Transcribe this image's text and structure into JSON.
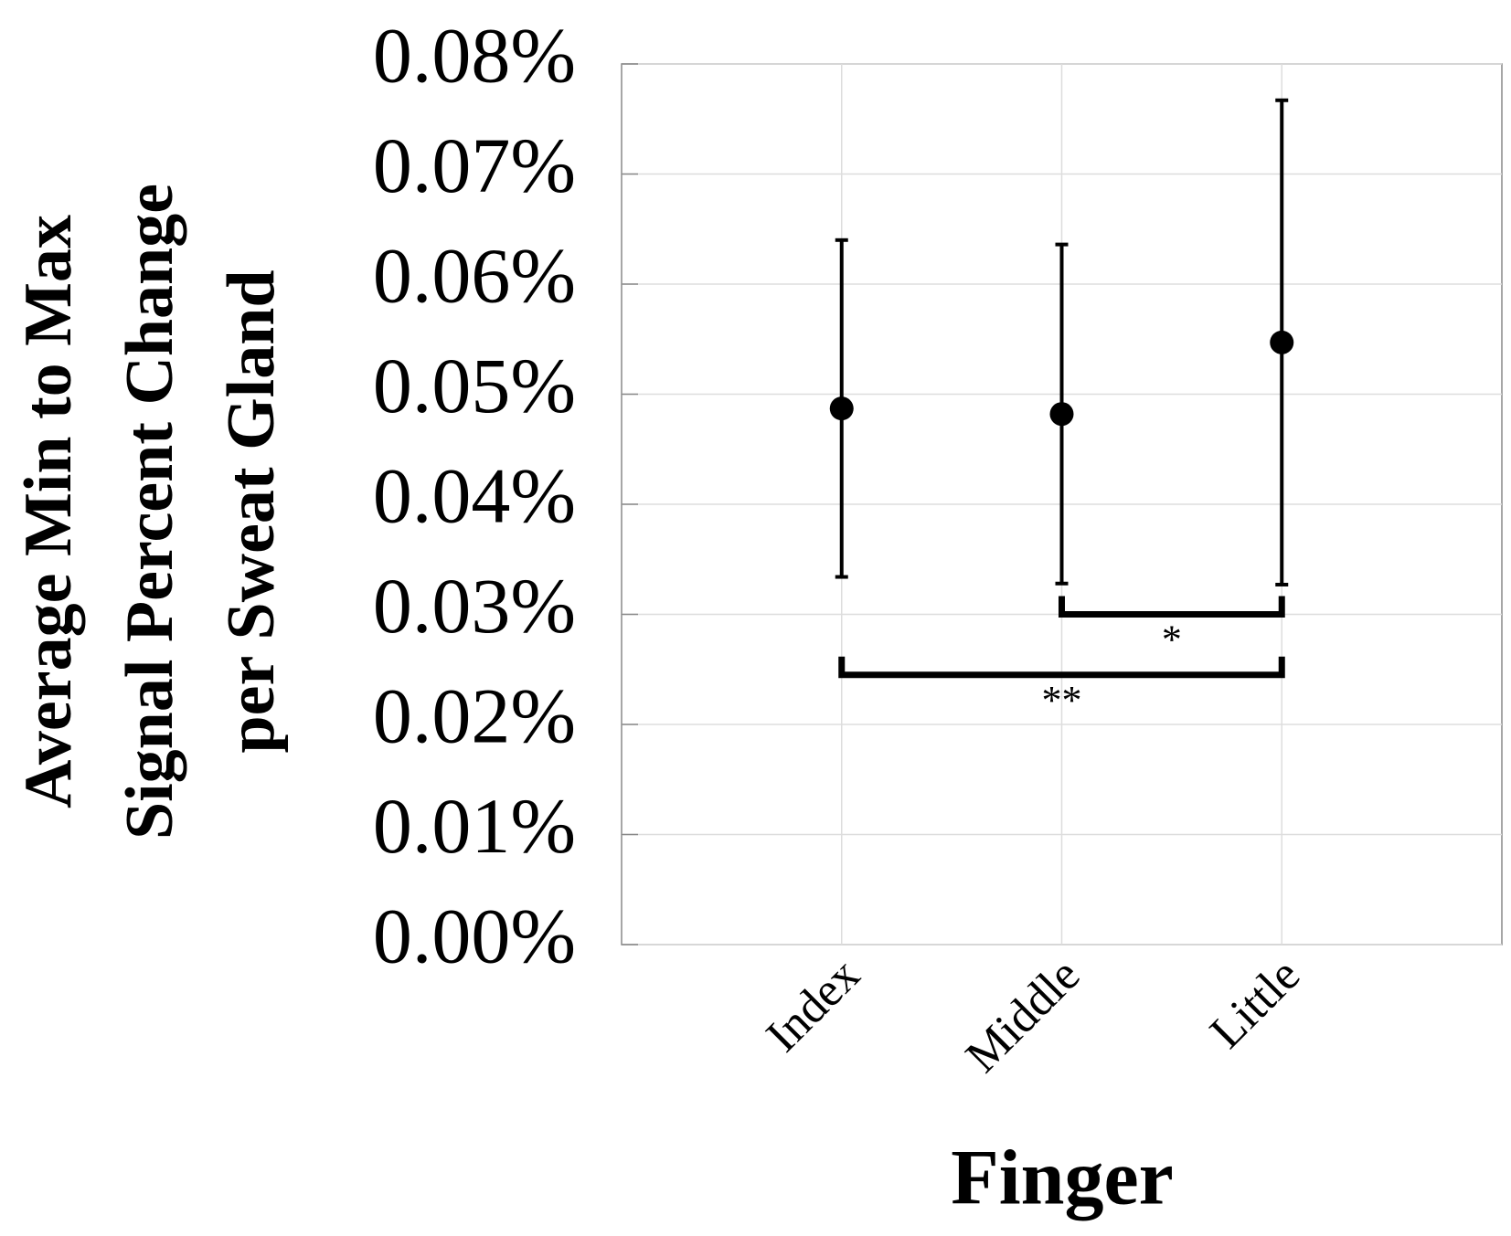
{
  "chart_data": {
    "type": "errorbar",
    "ylabel": [
      "Average Min to Max",
      "Signal Percent Change",
      "per Sweat Gland"
    ],
    "xlabel": "Finger",
    "categories": [
      "Index",
      "Middle",
      "Little"
    ],
    "values": [
      0.0487,
      0.0482,
      0.0547
    ],
    "errors": [
      0.0153,
      0.0154,
      0.022
    ],
    "color": "#000000",
    "ylim": [
      0,
      0.08
    ],
    "yticks": [
      {
        "value": 0,
        "label": "0.00%"
      },
      {
        "value": 0.01,
        "label": "0.01%"
      },
      {
        "value": 0.02,
        "label": "0.02%"
      },
      {
        "value": 0.03,
        "label": "0.03%"
      },
      {
        "value": 0.04,
        "label": "0.04%"
      },
      {
        "value": 0.05,
        "label": "0.05%"
      },
      {
        "value": 0.06,
        "label": "0.06%"
      },
      {
        "value": 0.07,
        "label": "0.07%"
      },
      {
        "value": 0.08,
        "label": "0.08%"
      }
    ],
    "grid": true,
    "annotations": [
      {
        "text": "*",
        "pair": [
          1,
          2
        ],
        "y": 0.03
      },
      {
        "text": "**",
        "pair": [
          0,
          2
        ],
        "y": 0.0245
      }
    ]
  }
}
